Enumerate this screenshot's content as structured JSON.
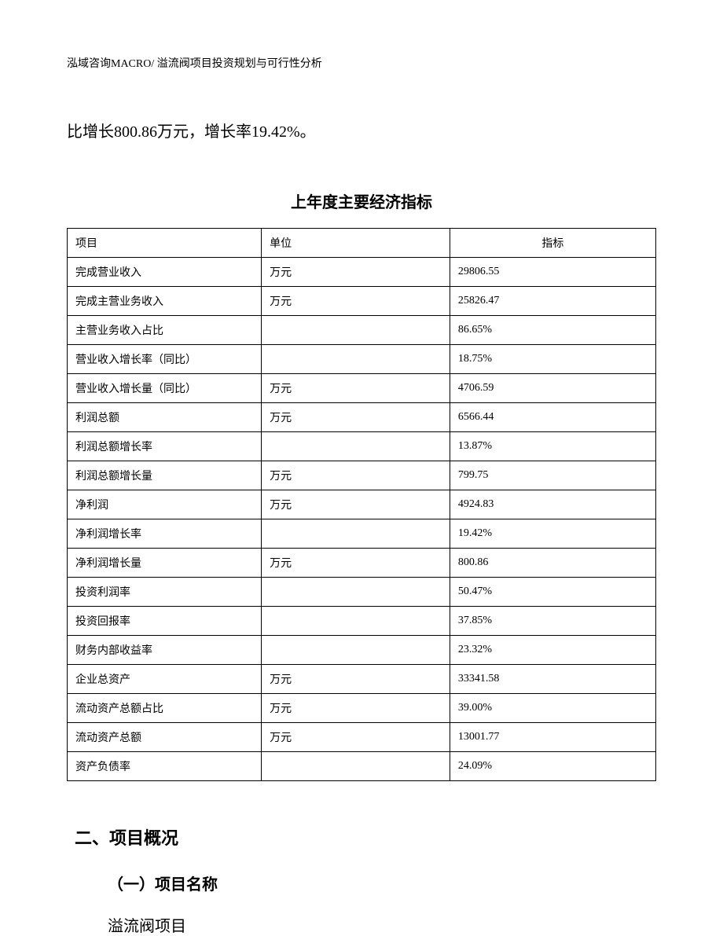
{
  "header": "泓域咨询MACRO/ 溢流阀项目投资规划与可行性分析",
  "intro": "比增长800.86万元，增长率19.42%。",
  "table": {
    "title": "上年度主要经济指标",
    "columns": [
      "项目",
      "单位",
      "指标"
    ],
    "rows": [
      [
        "完成营业收入",
        "万元",
        "29806.55"
      ],
      [
        "完成主营业务收入",
        "万元",
        "25826.47"
      ],
      [
        "主营业务收入占比",
        "",
        "86.65%"
      ],
      [
        "营业收入增长率（同比）",
        "",
        "18.75%"
      ],
      [
        "营业收入增长量（同比）",
        "万元",
        "4706.59"
      ],
      [
        "利润总额",
        "万元",
        "6566.44"
      ],
      [
        "利润总额增长率",
        "",
        "13.87%"
      ],
      [
        "利润总额增长量",
        "万元",
        "799.75"
      ],
      [
        "净利润",
        "万元",
        "4924.83"
      ],
      [
        "净利润增长率",
        "",
        "19.42%"
      ],
      [
        "净利润增长量",
        "万元",
        "800.86"
      ],
      [
        "投资利润率",
        "",
        "50.47%"
      ],
      [
        "投资回报率",
        "",
        "37.85%"
      ],
      [
        "财务内部收益率",
        "",
        "23.32%"
      ],
      [
        "企业总资产",
        "万元",
        "33341.58"
      ],
      [
        "流动资产总额占比",
        "万元",
        "39.00%"
      ],
      [
        "流动资产总额",
        "万元",
        "13001.77"
      ],
      [
        "资产负债率",
        "",
        "24.09%"
      ]
    ]
  },
  "section2": {
    "heading": "二、项目概况",
    "sub1_heading": "（一）项目名称",
    "sub1_body": "溢流阀项目"
  }
}
